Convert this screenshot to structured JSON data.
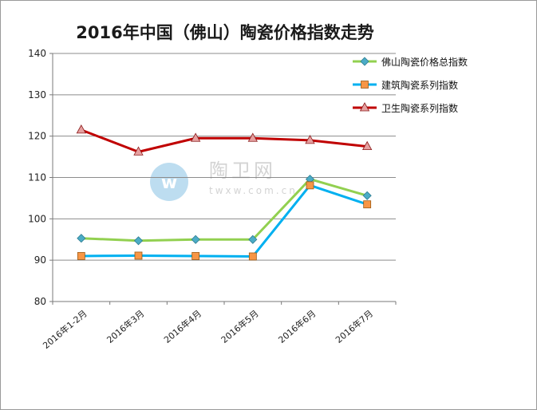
{
  "chart_data": {
    "type": "line",
    "title": "2016年中国（佛山）陶瓷价格指数走势",
    "categories": [
      "2016年1-2月",
      "2016年3月",
      "2016年4月",
      "2016年5月",
      "2016年6月",
      "2016年7月"
    ],
    "series": [
      {
        "name": "佛山陶瓷价格总指数",
        "color": "#92d050",
        "marker": "diamond",
        "marker_color": "#4bacc6",
        "values": [
          95.3,
          94.7,
          95.0,
          95.0,
          109.6,
          105.6
        ]
      },
      {
        "name": "建筑陶瓷系列指数",
        "color": "#00b0f0",
        "marker": "square",
        "marker_color": "#f79646",
        "values": [
          91.0,
          91.1,
          91.0,
          90.9,
          108.1,
          103.5
        ]
      },
      {
        "name": "卫生陶瓷系列指数",
        "color": "#c00000",
        "marker": "triangle",
        "marker_color": "#e6a0a0",
        "values": [
          121.5,
          116.2,
          119.5,
          119.5,
          119.0,
          117.5
        ]
      }
    ],
    "ylim": [
      80,
      140
    ],
    "yticks": [
      80,
      90,
      100,
      110,
      120,
      130,
      140
    ],
    "grid": true,
    "legend": "top-right"
  },
  "watermark": {
    "name": "陶卫网",
    "url": "twxw.com.cn"
  }
}
